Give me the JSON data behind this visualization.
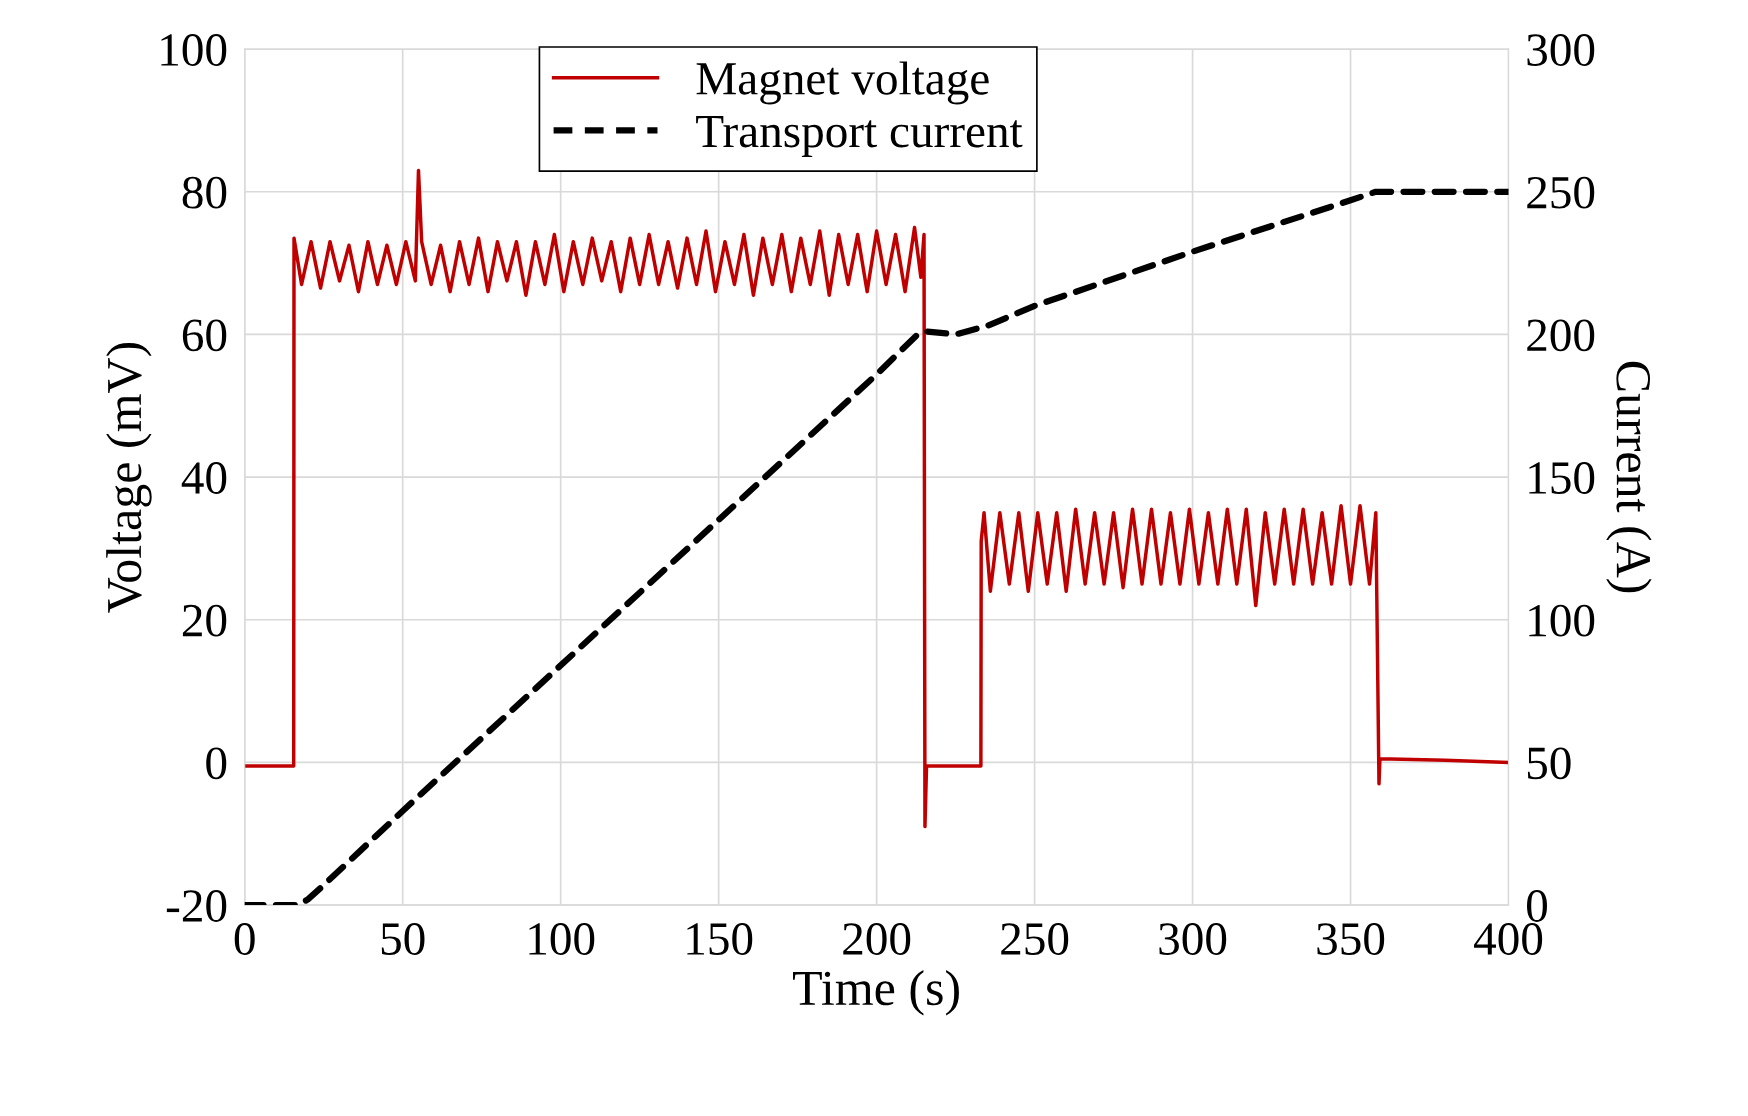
{
  "chart_data": {
    "type": "line",
    "xlabel": "Time (s)",
    "ylabel": "Voltage (mV)",
    "y2label": "Current (A)",
    "xlim": [
      0,
      400
    ],
    "xticks": [
      0,
      50,
      100,
      150,
      200,
      250,
      300,
      350,
      400
    ],
    "ylim": [
      -20,
      100
    ],
    "yticks": [
      -20,
      0,
      20,
      40,
      60,
      80,
      100
    ],
    "y2lim": [
      0,
      300
    ],
    "y2ticks": [
      0,
      50,
      100,
      150,
      200,
      250,
      300
    ],
    "grid": true,
    "legend": "top",
    "marker": "none",
    "series": [
      {
        "name": "Magnet voltage",
        "color": "#c00000",
        "line_style": "solid",
        "x": [
          0,
          15.5,
          15.6,
          18,
          21,
          24,
          27,
          30,
          33,
          36,
          39,
          42,
          45,
          48,
          51,
          54,
          55,
          56,
          59,
          62,
          65,
          68,
          71,
          74,
          77,
          80,
          83,
          86,
          89,
          92,
          95,
          98,
          101,
          104,
          107,
          110,
          113,
          116,
          119,
          122,
          125,
          128,
          131,
          134,
          137,
          140,
          143,
          146,
          149,
          152,
          155,
          158,
          161,
          164,
          167,
          170,
          173,
          176,
          179,
          182,
          185,
          188,
          191,
          194,
          197,
          200,
          203,
          206,
          209,
          212,
          214,
          215,
          215.3,
          215.8,
          233,
          233.1,
          234,
          236,
          239,
          242,
          245,
          248,
          251,
          254,
          257,
          260,
          263,
          266,
          269,
          272,
          275,
          278,
          281,
          284,
          287,
          290,
          293,
          296,
          299,
          302,
          305,
          308,
          311,
          314,
          317,
          320,
          323,
          326,
          329,
          332,
          335,
          338,
          341,
          344,
          347,
          350,
          353,
          356,
          358,
          359,
          359.3,
          380,
          400
        ],
        "values": [
          -0.5,
          -0.5,
          73.5,
          67,
          73,
          66.5,
          73,
          67.5,
          72.5,
          66,
          73,
          67,
          72.5,
          67,
          73,
          67.5,
          83,
          73,
          67,
          72.5,
          66,
          73,
          67,
          73.5,
          66,
          73,
          67.5,
          73,
          65.5,
          73,
          67,
          74,
          66,
          73,
          67,
          73.5,
          67.5,
          73,
          66,
          73.5,
          67,
          74,
          67,
          73,
          66.5,
          73.5,
          67,
          74.5,
          66,
          73,
          67,
          74,
          65.5,
          73.5,
          67,
          74,
          66,
          73.5,
          67,
          74.5,
          65.5,
          74,
          67,
          74,
          66,
          74.5,
          67,
          74,
          66,
          75,
          68,
          74,
          -9,
          -0.5,
          -0.5,
          31,
          35,
          24,
          35,
          25,
          35,
          24,
          35,
          25,
          35,
          24,
          35.5,
          25,
          35,
          25,
          35,
          24.5,
          35.5,
          25,
          35.5,
          25,
          35,
          25,
          35.5,
          25,
          35,
          25,
          35.5,
          25,
          35.5,
          22,
          35,
          25,
          35.5,
          25,
          35.5,
          25,
          35,
          25,
          36,
          25,
          36,
          25,
          35,
          -3,
          0.5,
          0.3,
          0
        ]
      },
      {
        "name": "Transport current",
        "color": "#000000",
        "line_style": "dashed",
        "axis": "y2",
        "x": [
          0,
          17,
          20,
          25,
          50,
          100,
          150,
          200,
          213,
          216,
          225,
          235,
          250,
          300,
          350,
          358,
          400
        ],
        "values": [
          0,
          0,
          2,
          7,
          33,
          84,
          135,
          186,
          200,
          201,
          200,
          203,
          210,
          229,
          247,
          250,
          250
        ]
      }
    ]
  }
}
